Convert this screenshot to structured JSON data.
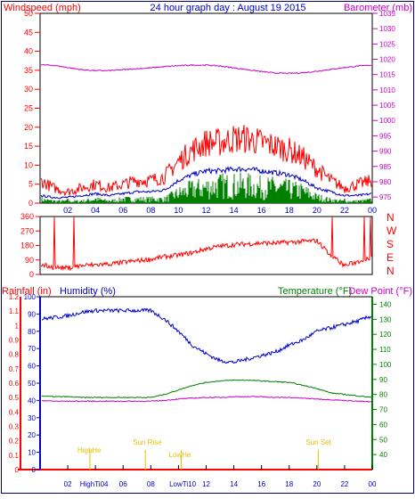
{
  "header": {
    "left": "Windspeed (mph)",
    "center": "24 hour graph day : August 19 2015",
    "right": "Barometer (mb)"
  },
  "lower_header": {
    "rainfall": "Rainfall (in)",
    "humidity": "Humidity (%)",
    "temperature": "Temperature (°F)",
    "dewpoint": "Dew Point (°F)"
  },
  "colors": {
    "border": "#000080",
    "wind_gust": "#ff0000",
    "wind_avg": "#0000c8",
    "wind_speed": "#008000",
    "barometer": "#cc00cc",
    "direction": "#ff0000",
    "humidity": "#0000c8",
    "temperature": "#008000",
    "dewpoint": "#cc00cc",
    "rain": "#ff0000",
    "annotation": "#e6c000"
  },
  "chart_data": [
    {
      "type": "line",
      "panel": "wind-barometer",
      "x_ticks": [
        "02",
        "04",
        "06",
        "08",
        "10",
        "12",
        "14",
        "16",
        "18",
        "20",
        "22",
        "00"
      ],
      "x_range_hours": [
        0,
        24
      ],
      "ylim_left": [
        0,
        50
      ],
      "yticks_left": [
        0,
        5,
        10,
        15,
        20,
        25,
        30,
        35,
        40,
        45,
        50
      ],
      "ylim_right": [
        973,
        1035
      ],
      "yticks_right": [
        975,
        980,
        985,
        990,
        995,
        1000,
        1005,
        1010,
        1015,
        1020,
        1025,
        1030,
        1035
      ],
      "series": [
        {
          "key": "gust",
          "axis": "left",
          "x": [
            0,
            0.5,
            1,
            2,
            3,
            4,
            5,
            6,
            7,
            8,
            9,
            10,
            11,
            12,
            13,
            14,
            15,
            16,
            17,
            18,
            19,
            20,
            21,
            22,
            23,
            24
          ],
          "y": [
            6,
            5,
            4,
            3,
            4,
            5,
            4,
            5,
            6,
            6,
            7,
            11,
            14,
            16,
            16,
            17,
            17,
            16,
            15,
            14,
            12,
            9,
            6,
            4,
            5,
            6
          ]
        },
        {
          "key": "average",
          "axis": "left",
          "x": [
            0,
            1,
            2,
            3,
            4,
            5,
            6,
            7,
            8,
            9,
            10,
            11,
            12,
            13,
            14,
            15,
            16,
            17,
            18,
            19,
            20,
            21,
            22,
            23,
            24
          ],
          "y": [
            2,
            1.5,
            1.5,
            2,
            2.5,
            2,
            2.5,
            3,
            3,
            3.5,
            6,
            7.5,
            8.5,
            8.5,
            9,
            9,
            8.5,
            8,
            7.5,
            6,
            4,
            3,
            2,
            2,
            2.5
          ]
        },
        {
          "key": "speed",
          "axis": "left",
          "x": [
            0,
            1,
            2,
            3,
            4,
            5,
            6,
            7,
            8,
            9,
            10,
            11,
            12,
            13,
            14,
            15,
            16,
            17,
            18,
            19,
            20,
            21,
            22,
            23,
            24
          ],
          "y": [
            1,
            0.5,
            0.5,
            0.5,
            1,
            0.5,
            1,
            1,
            1,
            1,
            2.5,
            3.5,
            4,
            4.5,
            4.5,
            4.5,
            4,
            4,
            3.5,
            3,
            1.5,
            0.8,
            0.5,
            0.5,
            0.8
          ]
        },
        {
          "key": "barometer",
          "axis": "right",
          "x": [
            0,
            1,
            2,
            3,
            4,
            5,
            6,
            7,
            8,
            9,
            10,
            11,
            12,
            13,
            14,
            15,
            16,
            17,
            18,
            19,
            20,
            21,
            22,
            23,
            24
          ],
          "y": [
            1018.2,
            1018.0,
            1017.3,
            1016.6,
            1016.3,
            1016.3,
            1016.6,
            1016.9,
            1017.2,
            1017.6,
            1017.9,
            1018.1,
            1018.1,
            1017.8,
            1017.2,
            1016.6,
            1016.0,
            1015.5,
            1015.4,
            1015.6,
            1016.1,
            1016.7,
            1017.3,
            1017.8,
            1018.1
          ]
        }
      ]
    },
    {
      "type": "scatter",
      "panel": "wind-direction",
      "ylim": [
        0,
        360
      ],
      "yticks": [
        0,
        90,
        180,
        270,
        360
      ],
      "compass_labels": [
        "N",
        "W",
        "S",
        "E",
        "N"
      ],
      "x": [
        0,
        1,
        2,
        3,
        4,
        5,
        6,
        7,
        8,
        9,
        10,
        11,
        12,
        13,
        14,
        15,
        16,
        17,
        18,
        19,
        20,
        21,
        22,
        23,
        24
      ],
      "y": [
        60,
        45,
        40,
        55,
        60,
        65,
        75,
        85,
        95,
        110,
        120,
        135,
        160,
        175,
        185,
        190,
        195,
        195,
        200,
        205,
        210,
        120,
        55,
        80,
        110
      ]
    },
    {
      "type": "line",
      "panel": "humidity-temperature-rain",
      "ylim_humidity": [
        0,
        100
      ],
      "yticks_humidity": [
        0,
        10,
        20,
        30,
        40,
        50,
        60,
        70,
        80,
        90,
        100
      ],
      "ylim_rain": [
        0,
        1.2
      ],
      "yticks_rain": [
        "0",
        "0.1",
        "0.2",
        "0.3",
        "0.4",
        "0.5",
        "0.6",
        "0.7",
        "0.8",
        "0.9",
        "1",
        "1.1",
        "1.2"
      ],
      "ylim_temp": [
        30,
        145
      ],
      "yticks_temp": [
        40,
        50,
        60,
        70,
        80,
        90,
        100,
        110,
        120,
        130,
        140
      ],
      "series": [
        {
          "key": "humidity",
          "x": [
            0,
            1,
            2,
            3,
            4,
            5,
            6,
            7,
            8,
            9,
            10,
            11,
            12,
            13,
            14,
            15,
            16,
            17,
            18,
            19,
            20,
            21,
            22,
            23,
            24
          ],
          "y": [
            87,
            88,
            89,
            91,
            92,
            92,
            92,
            92,
            92,
            87,
            80,
            72,
            67,
            63,
            62,
            64,
            66,
            68,
            72,
            75,
            80,
            82,
            84,
            86,
            89
          ]
        },
        {
          "key": "temperature",
          "x": [
            0,
            1,
            2,
            3,
            4,
            5,
            6,
            7,
            8,
            9,
            10,
            11,
            12,
            13,
            14,
            15,
            16,
            17,
            18,
            19,
            20,
            21,
            22,
            23,
            24
          ],
          "y": [
            79,
            78.5,
            78.5,
            78,
            78,
            78,
            78,
            78,
            78,
            80,
            83,
            86,
            88,
            89,
            89.5,
            89.5,
            89,
            88.5,
            88,
            86,
            84,
            81,
            80,
            79,
            78
          ]
        },
        {
          "key": "dewpoint",
          "x": [
            0,
            1,
            2,
            3,
            4,
            5,
            6,
            7,
            8,
            9,
            10,
            11,
            12,
            13,
            14,
            15,
            16,
            17,
            18,
            19,
            20,
            21,
            22,
            23,
            24
          ],
          "y": [
            76,
            75.5,
            75.5,
            75.5,
            75.5,
            75.5,
            75.5,
            75.5,
            75.5,
            76,
            77,
            77.5,
            78,
            78,
            78.5,
            78.5,
            78.5,
            78,
            78,
            77.5,
            77,
            76.5,
            76,
            75.5,
            75
          ]
        },
        {
          "key": "rain",
          "x": [
            0,
            24
          ],
          "y": [
            0,
            0
          ]
        }
      ],
      "annotations": [
        {
          "text": "HighHe",
          "hour": 3.6
        },
        {
          "text": "Sun Rise",
          "hour": 7.6
        },
        {
          "text": "LowHe",
          "hour": 10.2
        },
        {
          "text": "Sun Set",
          "hour": 20.1
        }
      ],
      "bottom_labels": [
        {
          "text": "02",
          "hour": 2
        },
        {
          "text": "HighTi04",
          "hour": 3.9
        },
        {
          "text": "06",
          "hour": 6
        },
        {
          "text": "08",
          "hour": 8
        },
        {
          "text": "LowTi10",
          "hour": 10.3
        },
        {
          "text": "12",
          "hour": 12
        },
        {
          "text": "14",
          "hour": 14
        },
        {
          "text": "16",
          "hour": 16
        },
        {
          "text": "18",
          "hour": 18
        },
        {
          "text": "20",
          "hour": 20
        },
        {
          "text": "22",
          "hour": 22
        },
        {
          "text": "00",
          "hour": 24
        }
      ]
    }
  ]
}
